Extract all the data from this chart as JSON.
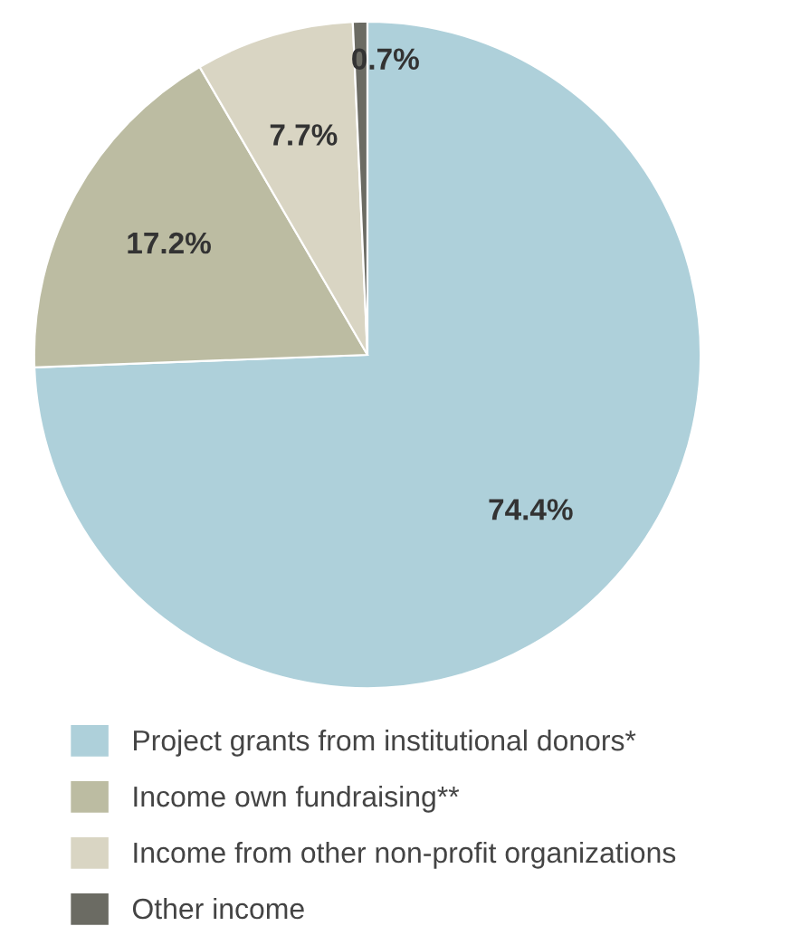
{
  "chart_data": {
    "type": "pie",
    "categories": [
      "Project grants from institutional donors*",
      "Income own fundraising**",
      "Income from other non-profit organizations",
      "Other income"
    ],
    "values": [
      74.4,
      17.2,
      7.7,
      0.7
    ],
    "colors": [
      "#aed0da",
      "#bcbca2",
      "#d9d5c3",
      "#6b6b63"
    ],
    "value_labels": [
      "74.4%",
      "17.2%",
      "7.7%",
      "0.7%"
    ],
    "legend": "bottom"
  }
}
